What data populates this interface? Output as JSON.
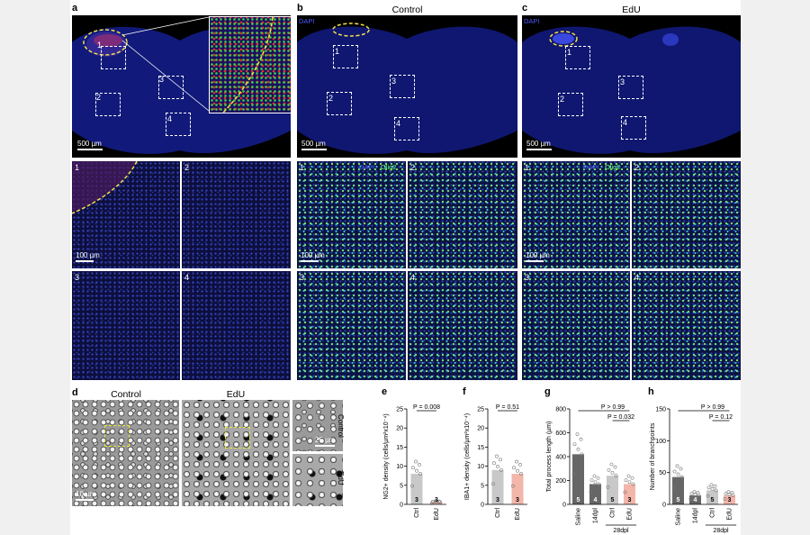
{
  "panels": {
    "a": {
      "label": "a",
      "scalebar_overview": "500 µm",
      "scalebar_tile": "100 µm",
      "tile_numbers": [
        "1",
        "2",
        "3",
        "4"
      ]
    },
    "b": {
      "label": "b",
      "title": "Control",
      "overview_stain": "DAPI",
      "tile_stain": [
        "DAPI",
        "Olig2"
      ],
      "scalebar_overview": "500 µm",
      "scalebar_tile": "100 µm",
      "tile_numbers": [
        "1",
        "2",
        "3",
        "4"
      ]
    },
    "c": {
      "label": "c",
      "title": "EdU",
      "overview_stain": "DAPI",
      "tile_stain": [
        "DAPI",
        "Olig2"
      ],
      "scalebar_overview": "500 µm",
      "scalebar_tile": "100 µm",
      "tile_numbers": [
        "1",
        "2",
        "3",
        "4"
      ]
    },
    "d": {
      "label": "d",
      "title_control": "Control",
      "title_edu": "EdU",
      "scalebar_large": "10 µm",
      "scalebar_small": "25 µm",
      "side_control": "Control",
      "side_edu": "EdU"
    }
  },
  "colors": {
    "dapi": "#4e57ff",
    "olig2": "#6cff6c",
    "gray_bar": "#c8c8c8",
    "dark_bar": "#666666",
    "pink_bar": "#f2b6aa"
  },
  "chart_data": [
    {
      "label": "e",
      "type": "bar",
      "ylabel": "NG2+ density (cells/µm²x10⁻⁴)",
      "categories": [
        "Ctrl",
        "EdU"
      ],
      "values": [
        8,
        0.6
      ],
      "n": [
        "3",
        "3"
      ],
      "ylim": [
        0,
        25
      ],
      "yticks": [
        "0",
        "5",
        "10",
        "15",
        "20",
        "25"
      ],
      "pvalues": [
        "P = 0.008"
      ]
    },
    {
      "label": "f",
      "type": "bar",
      "ylabel": "IBA1+ density (cells/µm²x10⁻⁴)",
      "categories": [
        "Ctrl",
        "EdU"
      ],
      "values": [
        9,
        8
      ],
      "n": [
        "3",
        "3"
      ],
      "ylim": [
        0,
        25
      ],
      "yticks": [
        "0",
        "5",
        "10",
        "15",
        "20",
        "25"
      ],
      "pvalues": [
        "P = 0.51"
      ]
    },
    {
      "label": "g",
      "type": "bar",
      "ylabel": "Total process length (µm)",
      "categories": [
        "Saline",
        "14dpl",
        "Ctrl",
        "EdU"
      ],
      "group_label": "28dpl",
      "values": [
        420,
        170,
        240,
        170
      ],
      "n": [
        "5",
        "4",
        "5",
        "3"
      ],
      "ylim": [
        0,
        800
      ],
      "yticks": [
        "0",
        "200",
        "400",
        "600",
        "800"
      ],
      "pvalues": [
        "P > 0.99",
        "P = 0.032"
      ]
    },
    {
      "label": "h",
      "type": "bar",
      "ylabel": "Number of branchpoints",
      "categories": [
        "Saline",
        "14dpl",
        "Ctrl",
        "EdU"
      ],
      "group_label": "28dpl",
      "values": [
        43,
        14,
        22,
        14
      ],
      "n": [
        "5",
        "4",
        "5",
        "3"
      ],
      "ylim": [
        0,
        150
      ],
      "yticks": [
        "0",
        "50",
        "100",
        "150"
      ],
      "pvalues": [
        "P > 0.99",
        "P = 0.12"
      ]
    }
  ]
}
